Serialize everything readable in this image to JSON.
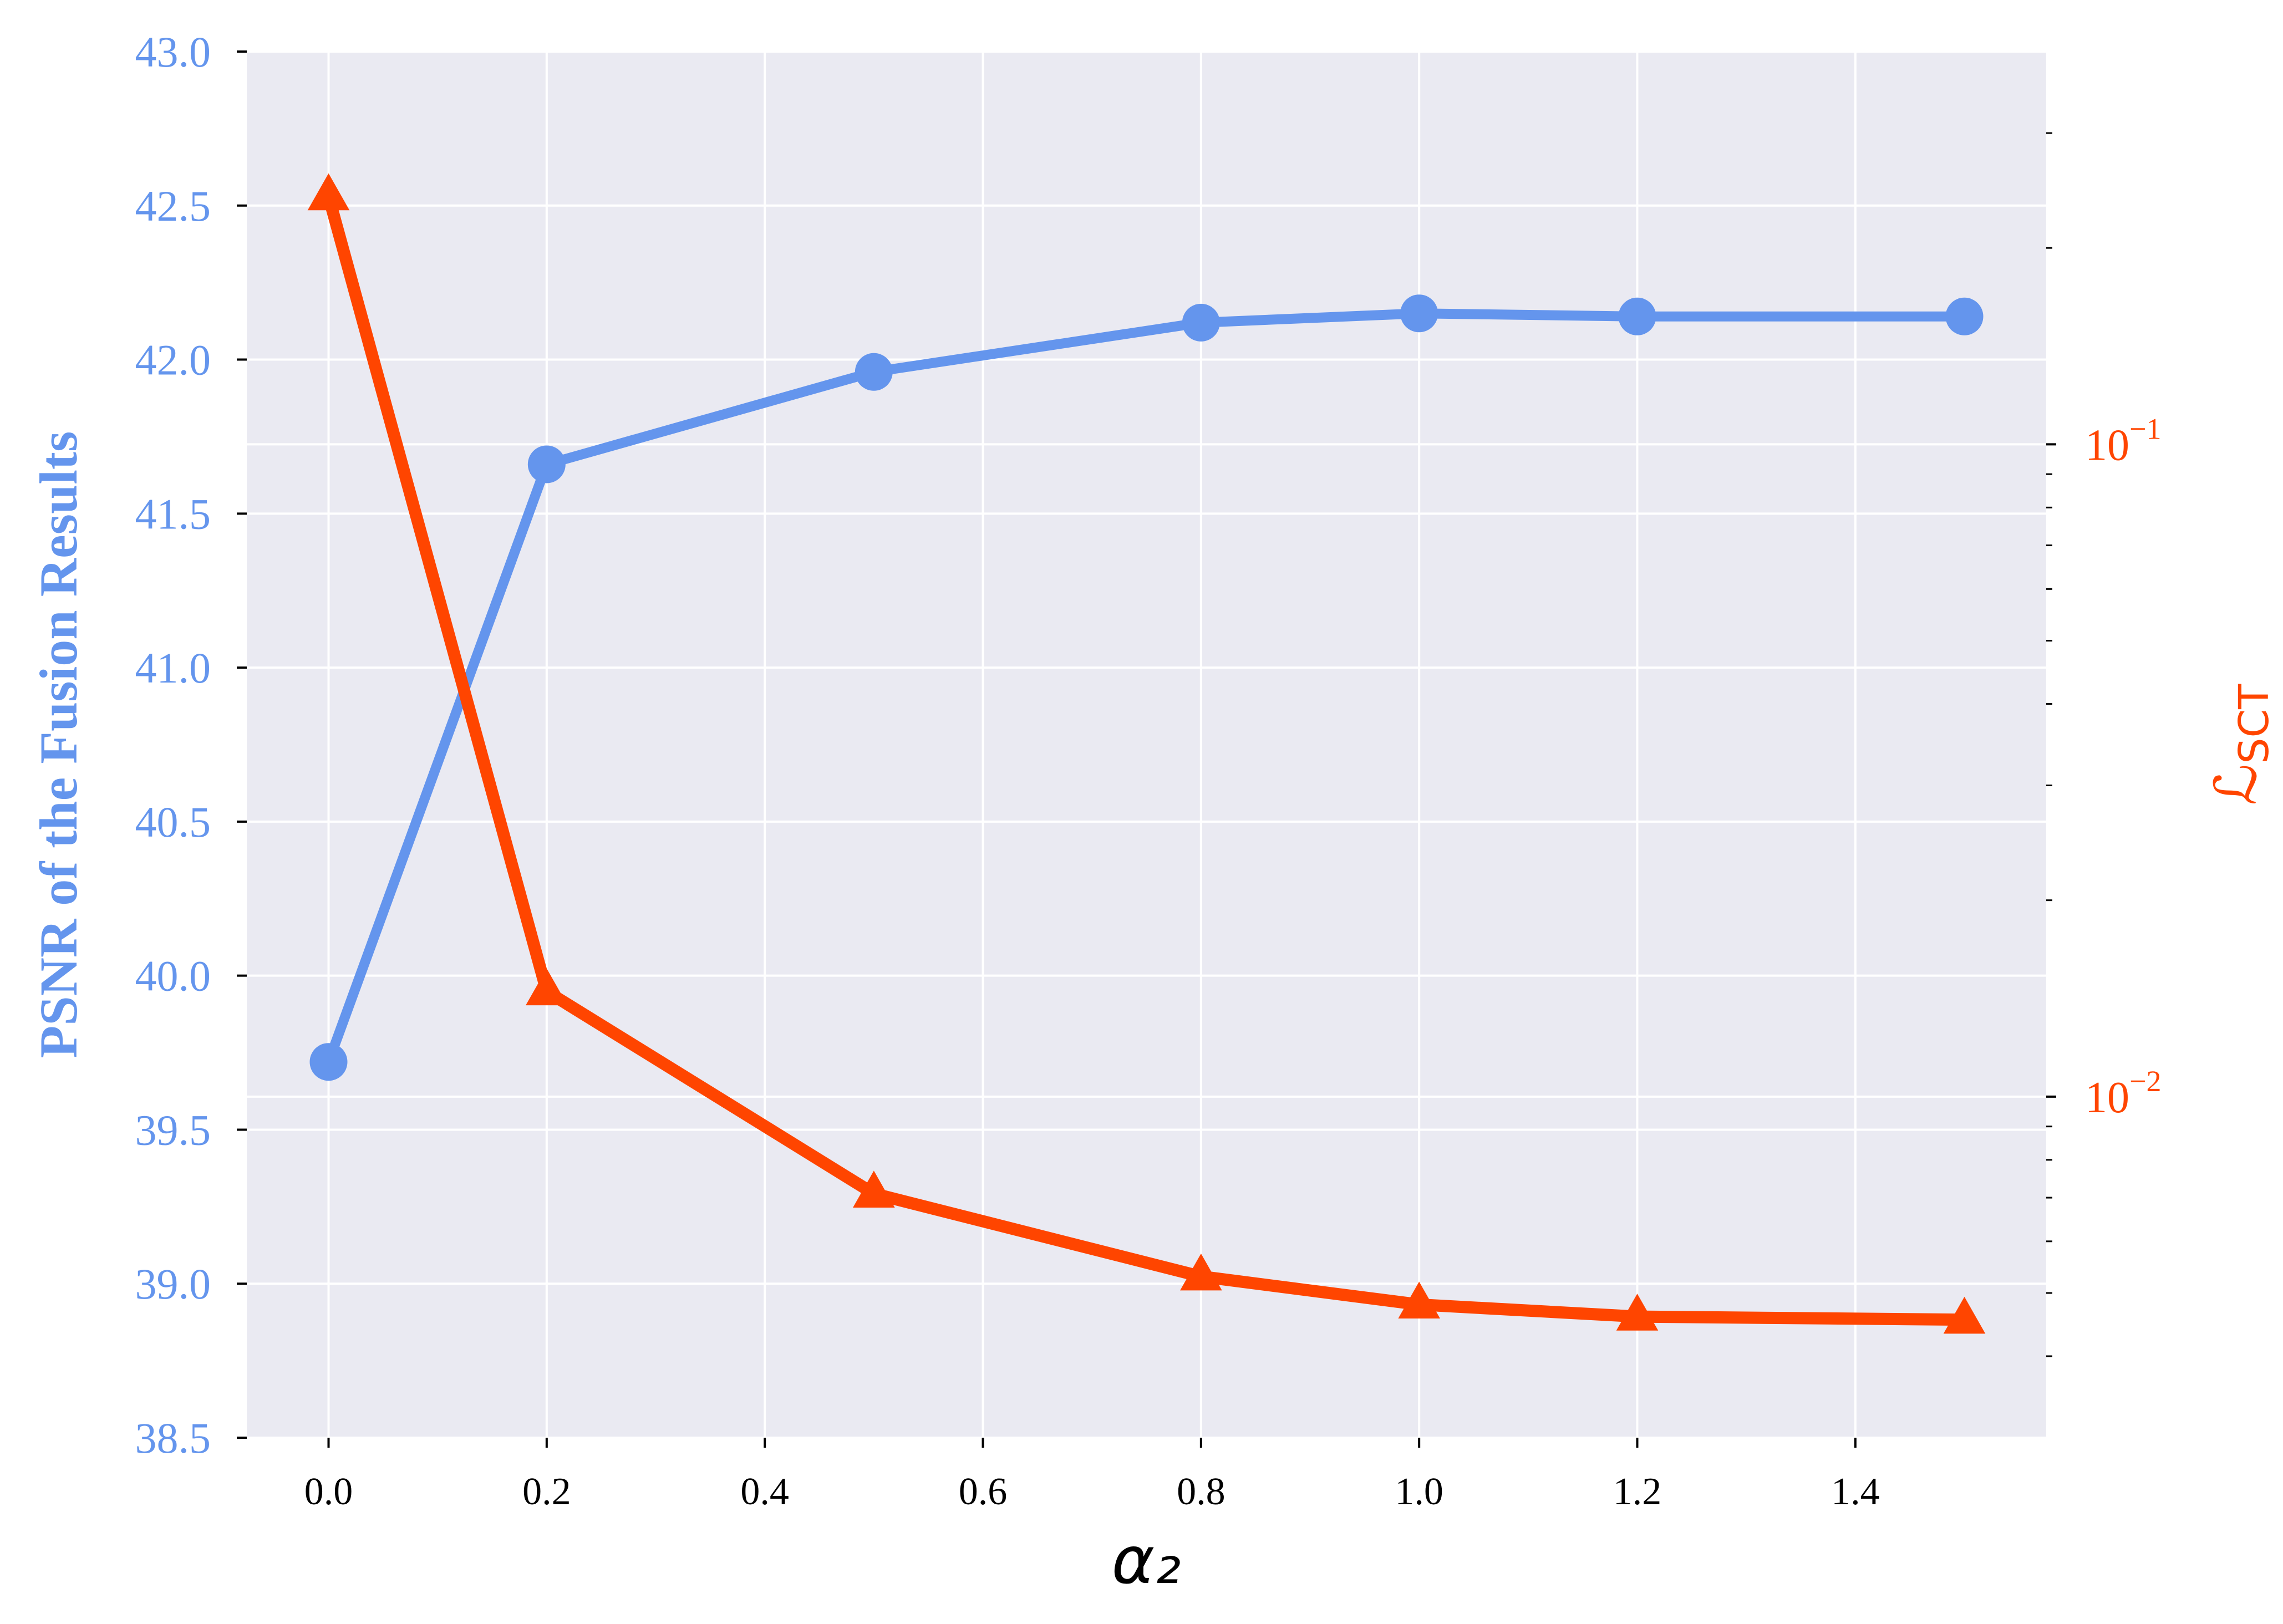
{
  "chart_data": {
    "type": "line",
    "xlabel": "α₂",
    "x": [
      0.0,
      0.2,
      0.5,
      0.8,
      1.0,
      1.2,
      1.5
    ],
    "x_ticks": [
      "0.0",
      "0.2",
      "0.4",
      "0.6",
      "0.8",
      "1.0",
      "1.2",
      "1.4"
    ],
    "x_tick_values": [
      0.0,
      0.2,
      0.4,
      0.6,
      0.8,
      1.0,
      1.2,
      1.4
    ],
    "xlim": [
      -0.075,
      1.575
    ],
    "y_left": {
      "label": "PSNR of the Fusion Results",
      "ylim": [
        38.5,
        43.0
      ],
      "ticks": [
        "38.5",
        "39.0",
        "39.5",
        "40.0",
        "40.5",
        "41.0",
        "41.5",
        "42.0",
        "42.5",
        "43.0"
      ],
      "tick_values": [
        38.5,
        39.0,
        39.5,
        40.0,
        40.5,
        41.0,
        41.5,
        42.0,
        42.5,
        43.0
      ],
      "color": "#6495ED"
    },
    "y_right": {
      "label_symbol": "ℒ",
      "label_subscript": "SCT",
      "scale": "log",
      "ylim": [
        0.003,
        0.4
      ],
      "major_ticks": [
        {
          "value": 0.1,
          "base": "10",
          "exp": "−1"
        },
        {
          "value": 0.01,
          "base": "10",
          "exp": "−2"
        }
      ],
      "minor_ticks": [
        0.004,
        0.005,
        0.006,
        0.007,
        0.008,
        0.009,
        0.02,
        0.03,
        0.04,
        0.05,
        0.06,
        0.07,
        0.08,
        0.09,
        0.2,
        0.3
      ],
      "color": "#FF4500"
    },
    "series": [
      {
        "axis": "left",
        "marker": "circle",
        "color": "#6495ED",
        "values": [
          39.72,
          41.66,
          41.96,
          42.12,
          42.15,
          42.14,
          42.14
        ]
      },
      {
        "axis": "right",
        "marker": "triangle",
        "color": "#FF4500",
        "values": [
          0.24,
          0.0145,
          0.0071,
          0.0053,
          0.0048,
          0.0046,
          0.00455
        ]
      }
    ],
    "grid": true,
    "background": "#EAEAF2"
  }
}
